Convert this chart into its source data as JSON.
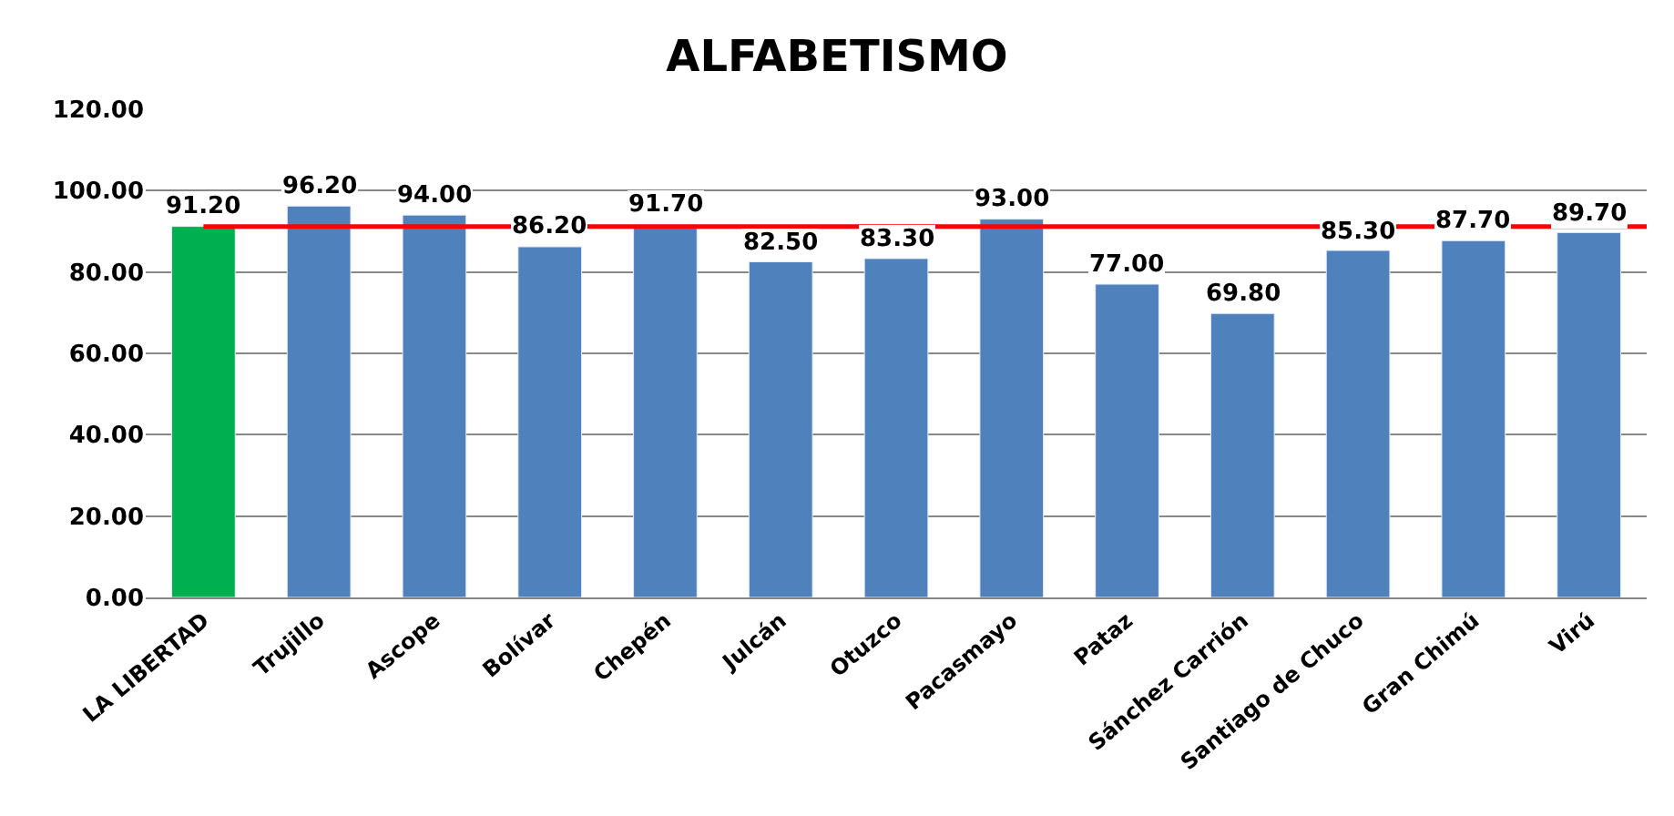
{
  "chart_data": {
    "type": "bar",
    "title": "ALFABETISMO",
    "categories": [
      "LA LIBERTAD",
      "Trujillo",
      "Ascope",
      "Bolívar",
      "Chepén",
      "Julcán",
      "Otuzco",
      "Pacasmayo",
      "Pataz",
      "Sánchez Carrión",
      "Santiago de Chuco",
      "Gran Chimú",
      "Virú"
    ],
    "values": [
      91.2,
      96.2,
      94.0,
      86.2,
      91.7,
      82.5,
      83.3,
      93.0,
      77.0,
      69.8,
      85.3,
      87.7,
      89.7
    ],
    "value_labels": [
      "91.20",
      "96.20",
      "94.00",
      "86.20",
      "91.70",
      "82.50",
      "83.30",
      "93.00",
      "77.00",
      "69.80",
      "85.30",
      "87.70",
      "89.70"
    ],
    "colors": [
      "#00b050",
      "#4f81bd",
      "#4f81bd",
      "#4f81bd",
      "#4f81bd",
      "#4f81bd",
      "#4f81bd",
      "#4f81bd",
      "#4f81bd",
      "#4f81bd",
      "#4f81bd",
      "#4f81bd",
      "#4f81bd"
    ],
    "ylim": [
      0,
      120
    ],
    "yticks": [
      {
        "value": 0,
        "label": "0.00"
      },
      {
        "value": 20,
        "label": "20.00"
      },
      {
        "value": 40,
        "label": "40.00"
      },
      {
        "value": 60,
        "label": "60.00"
      },
      {
        "value": 80,
        "label": "80.00"
      },
      {
        "value": 100,
        "label": "100.00"
      },
      {
        "value": 120,
        "label": "120.00"
      }
    ],
    "ref_lines": [
      {
        "axis": "y",
        "value": 91.2,
        "color": "#ff0000"
      }
    ],
    "grid": "y"
  }
}
